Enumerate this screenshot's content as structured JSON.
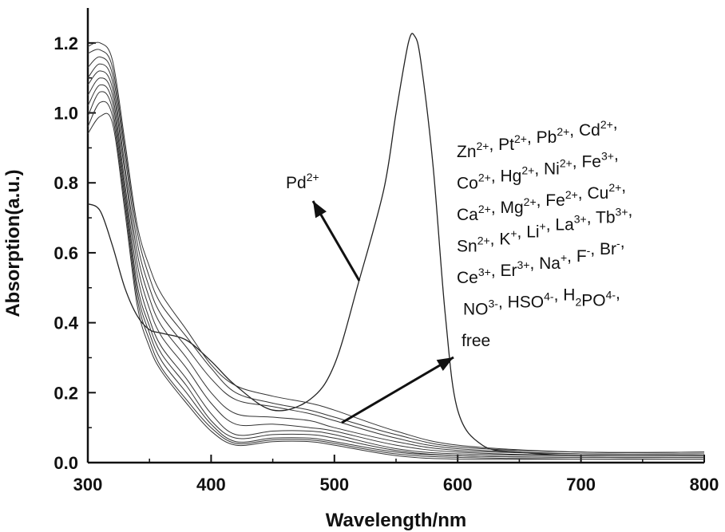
{
  "chart_data": {
    "type": "line",
    "title": "",
    "xlabel": "Wavelength/nm",
    "ylabel": "Absorption(a.u.)",
    "xlim": [
      300,
      800
    ],
    "ylim": [
      0.0,
      1.3
    ],
    "xticks": [
      "300",
      "400",
      "500",
      "600",
      "700",
      "800"
    ],
    "yticks": [
      "0.0",
      "0.2",
      "0.4",
      "0.6",
      "0.8",
      "1.0",
      "1.2"
    ],
    "grid": false,
    "legend": "none",
    "annotations": {
      "pd_label": "Pd2+",
      "ion_lines": [
        "Zn2+, Pt2+, Pb2+, Cd2+,",
        "Co2+, Hg2+, Ni2+, Fe3+,",
        "Ca2+, Mg2+, Fe2+, Cu2+,",
        "Sn2+, K+, Li+, La3+, Tb3+,",
        "Ce3+, Er3+, Na+, F-, Br-,",
        "NO3-, HSO4-, H2PO4-,",
        "free"
      ]
    },
    "series": [
      {
        "x": [
          300,
          310,
          320,
          330,
          340,
          350,
          360,
          380,
          400,
          420,
          450,
          480,
          500,
          520,
          540,
          550,
          560,
          565,
          570,
          580,
          590,
          600,
          620,
          650,
          700,
          800
        ],
        "y": [
          0.74,
          0.72,
          0.62,
          0.5,
          0.42,
          0.38,
          0.37,
          0.35,
          0.29,
          0.22,
          0.15,
          0.18,
          0.28,
          0.52,
          0.78,
          1.0,
          1.2,
          1.22,
          1.15,
          0.85,
          0.42,
          0.15,
          0.05,
          0.03,
          0.02,
          0.02
        ]
      },
      {
        "x": [
          300,
          310,
          320,
          330,
          340,
          350,
          360,
          380,
          400,
          420,
          450,
          480,
          500,
          550,
          600,
          700,
          800
        ],
        "y": [
          1.19,
          1.2,
          1.15,
          0.92,
          0.68,
          0.56,
          0.48,
          0.38,
          0.28,
          0.22,
          0.19,
          0.17,
          0.15,
          0.09,
          0.05,
          0.03,
          0.03
        ]
      },
      {
        "x": [
          300,
          310,
          320,
          330,
          340,
          350,
          360,
          380,
          400,
          420,
          450,
          480,
          500,
          550,
          600,
          700,
          800
        ],
        "y": [
          1.17,
          1.18,
          1.13,
          0.9,
          0.66,
          0.53,
          0.45,
          0.36,
          0.27,
          0.2,
          0.17,
          0.15,
          0.13,
          0.08,
          0.045,
          0.03,
          0.03
        ]
      },
      {
        "x": [
          300,
          310,
          320,
          330,
          340,
          350,
          360,
          380,
          400,
          420,
          450,
          480,
          500,
          550,
          600,
          700,
          800
        ],
        "y": [
          1.13,
          1.16,
          1.11,
          0.88,
          0.63,
          0.5,
          0.42,
          0.33,
          0.24,
          0.18,
          0.16,
          0.14,
          0.12,
          0.07,
          0.04,
          0.025,
          0.025
        ]
      },
      {
        "x": [
          300,
          310,
          320,
          330,
          340,
          350,
          360,
          380,
          400,
          420,
          450,
          480,
          500,
          550,
          600,
          700,
          800
        ],
        "y": [
          1.1,
          1.14,
          1.09,
          0.85,
          0.6,
          0.47,
          0.39,
          0.3,
          0.2,
          0.14,
          0.13,
          0.12,
          0.1,
          0.06,
          0.035,
          0.025,
          0.025
        ]
      },
      {
        "x": [
          300,
          310,
          320,
          330,
          340,
          350,
          360,
          380,
          400,
          420,
          450,
          480,
          500,
          550,
          600,
          700,
          800
        ],
        "y": [
          1.08,
          1.12,
          1.07,
          0.83,
          0.57,
          0.44,
          0.36,
          0.27,
          0.17,
          0.11,
          0.11,
          0.1,
          0.09,
          0.05,
          0.03,
          0.02,
          0.02
        ]
      },
      {
        "x": [
          300,
          310,
          320,
          330,
          340,
          350,
          360,
          380,
          400,
          420,
          450,
          480,
          500,
          550,
          600,
          700,
          800
        ],
        "y": [
          1.05,
          1.1,
          1.05,
          0.8,
          0.54,
          0.41,
          0.33,
          0.24,
          0.14,
          0.08,
          0.09,
          0.09,
          0.08,
          0.04,
          0.025,
          0.02,
          0.02
        ]
      },
      {
        "x": [
          300,
          310,
          320,
          330,
          340,
          350,
          360,
          380,
          400,
          420,
          450,
          480,
          500,
          550,
          600,
          700,
          800
        ],
        "y": [
          1.02,
          1.08,
          1.03,
          0.78,
          0.51,
          0.39,
          0.31,
          0.22,
          0.12,
          0.07,
          0.08,
          0.08,
          0.07,
          0.035,
          0.02,
          0.015,
          0.015
        ]
      },
      {
        "x": [
          300,
          310,
          320,
          330,
          340,
          350,
          360,
          380,
          400,
          420,
          450,
          480,
          500,
          550,
          600,
          700,
          800
        ],
        "y": [
          0.99,
          1.06,
          1.01,
          0.76,
          0.49,
          0.37,
          0.29,
          0.2,
          0.11,
          0.06,
          0.07,
          0.07,
          0.06,
          0.03,
          0.02,
          0.015,
          0.015
        ]
      },
      {
        "x": [
          300,
          310,
          320,
          330,
          340,
          350,
          360,
          380,
          400,
          420,
          450,
          480,
          500,
          550,
          600,
          700,
          800
        ],
        "y": [
          0.96,
          1.03,
          0.99,
          0.74,
          0.47,
          0.35,
          0.27,
          0.18,
          0.1,
          0.055,
          0.065,
          0.065,
          0.055,
          0.025,
          0.015,
          0.01,
          0.01
        ]
      },
      {
        "x": [
          300,
          310,
          320,
          330,
          340,
          350,
          360,
          380,
          400,
          420,
          450,
          480,
          500,
          550,
          600,
          700,
          800
        ],
        "y": [
          0.94,
          0.99,
          0.97,
          0.72,
          0.45,
          0.33,
          0.26,
          0.17,
          0.09,
          0.05,
          0.06,
          0.06,
          0.05,
          0.02,
          0.01,
          0.01,
          0.01
        ]
      }
    ]
  }
}
